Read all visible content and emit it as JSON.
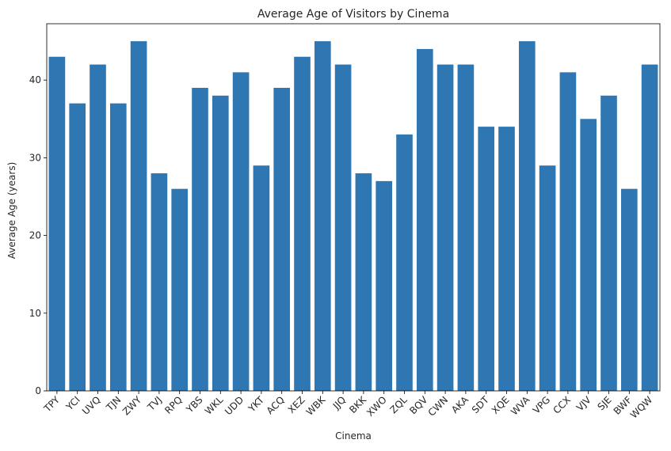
{
  "chart_data": {
    "type": "bar",
    "title": "Average Age of Visitors by Cinema",
    "xlabel": "Cinema",
    "ylabel": "Average Age (years)",
    "categories": [
      "TPY",
      "YCI",
      "UVQ",
      "TJN",
      "ZWY",
      "TVJ",
      "RPQ",
      "YBS",
      "WKL",
      "UDD",
      "YKT",
      "ACQ",
      "XEZ",
      "WBK",
      "JJQ",
      "BKK",
      "XWO",
      "ZQL",
      "BQV",
      "CWN",
      "AKA",
      "SDT",
      "XQE",
      "WVA",
      "VPG",
      "CCX",
      "VJV",
      "SJE",
      "BWF",
      "WQW"
    ],
    "values": [
      43,
      37,
      42,
      37,
      45,
      28,
      26,
      39,
      38,
      41,
      29,
      39,
      43,
      45,
      42,
      28,
      27,
      33,
      44,
      42,
      42,
      34,
      34,
      45,
      29,
      41,
      35,
      38,
      26,
      42
    ],
    "yticks": [
      0,
      10,
      20,
      30,
      40
    ],
    "ylim": [
      0,
      47.25
    ],
    "bar_color": "#2f77b3",
    "grid": false,
    "legend": "none"
  }
}
